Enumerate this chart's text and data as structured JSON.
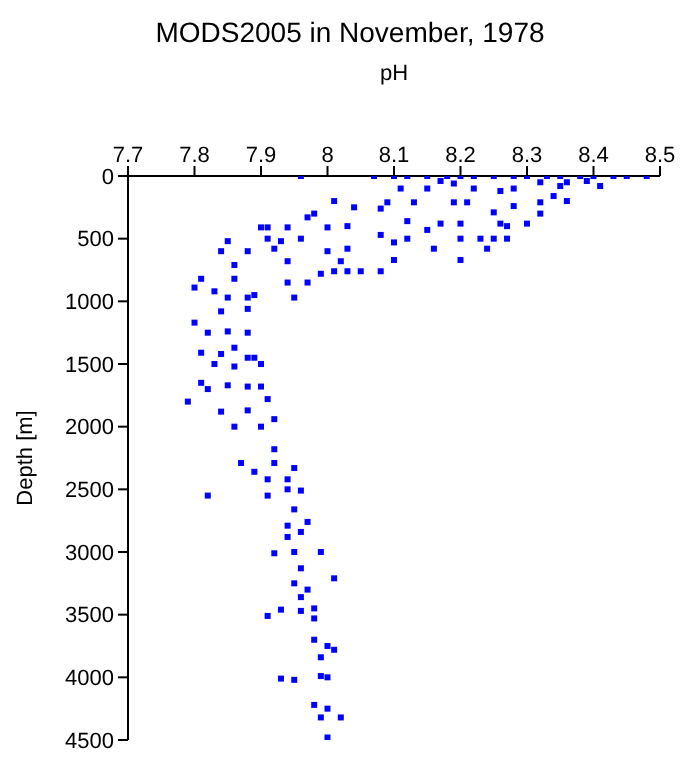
{
  "chart_data": {
    "type": "scatter",
    "title": "MODS2005 in November, 1978",
    "xlabel": "pH",
    "ylabel": "Depth [m]",
    "xlim": [
      7.7,
      8.5
    ],
    "xticks": [
      7.7,
      7.8,
      7.9,
      8,
      8.1,
      8.2,
      8.3,
      8.4,
      8.5
    ],
    "ylim": [
      4500,
      0
    ],
    "yticks": [
      0,
      500,
      1000,
      1500,
      2000,
      2500,
      3000,
      3500,
      4000,
      4500
    ],
    "grid": false,
    "marker": "square",
    "legend": false,
    "series": [
      {
        "color": "#0000ff",
        "x": [
          7.96,
          8.07,
          8.1,
          8.12,
          8.15,
          8.18,
          8.2,
          8.22,
          8.25,
          8.28,
          8.3,
          8.33,
          8.35,
          8.38,
          8.4,
          8.43,
          8.45,
          8.48,
          8.11,
          8.15,
          8.17,
          8.19,
          8.22,
          8.26,
          8.28,
          8.32,
          8.35,
          8.36,
          8.39,
          8.41,
          8.34,
          8.36,
          8.32,
          8.28,
          8.25,
          8.21,
          8.19,
          8.13,
          8.09,
          8.01,
          8.04,
          8.08,
          8.12,
          8.17,
          8.2,
          8.26,
          8.3,
          8.32,
          8.27,
          8.23,
          8.2,
          8.25,
          8.27,
          8.15,
          8.08,
          8.1,
          8.12,
          8.16,
          8.2,
          8.24,
          8.1,
          8.08,
          8.05,
          8.03,
          8.01,
          7.99,
          8.02,
          8.03,
          8.0,
          7.98,
          7.97,
          8.0,
          8.03,
          7.94,
          7.96,
          7.93,
          7.91,
          7.91,
          7.9,
          7.85,
          7.84,
          7.88,
          7.86,
          7.92,
          7.94,
          7.97,
          7.95,
          7.94,
          7.89,
          7.88,
          7.86,
          7.81,
          7.8,
          7.83,
          7.85,
          7.84,
          7.88,
          7.82,
          7.85,
          7.8,
          7.88,
          7.81,
          7.84,
          7.86,
          7.88,
          7.89,
          7.83,
          7.86,
          7.9,
          7.81,
          7.82,
          7.85,
          7.88,
          7.9,
          7.79,
          7.84,
          7.88,
          7.91,
          7.86,
          7.9,
          7.92,
          7.92,
          7.87,
          7.92,
          7.95,
          7.89,
          7.91,
          7.94,
          7.94,
          7.96,
          7.91,
          7.82,
          7.95,
          7.94,
          7.97,
          7.96,
          7.94,
          7.92,
          7.95,
          7.99,
          7.96,
          8.01,
          7.95,
          7.97,
          7.96,
          7.91,
          7.93,
          7.96,
          7.98,
          7.98,
          7.98,
          8.0,
          8.01,
          7.99,
          7.93,
          7.95,
          7.99,
          8.0,
          7.98,
          8.0,
          7.99,
          8.02,
          8.0
        ],
        "values": [
          0,
          0,
          0,
          0,
          0,
          0,
          0,
          0,
          0,
          0,
          0,
          0,
          0,
          0,
          0,
          0,
          0,
          0,
          100,
          100,
          40,
          60,
          100,
          120,
          100,
          50,
          80,
          50,
          40,
          80,
          160,
          200,
          210,
          240,
          290,
          210,
          210,
          210,
          210,
          200,
          250,
          260,
          360,
          380,
          380,
          380,
          380,
          300,
          400,
          500,
          500,
          500,
          500,
          430,
          470,
          530,
          500,
          580,
          670,
          580,
          670,
          760,
          760,
          760,
          760,
          780,
          680,
          580,
          600,
          300,
          330,
          410,
          400,
          410,
          500,
          520,
          410,
          500,
          410,
          520,
          600,
          600,
          710,
          580,
          680,
          850,
          970,
          850,
          950,
          970,
          820,
          820,
          890,
          920,
          970,
          1080,
          1060,
          1250,
          1240,
          1170,
          1250,
          1410,
          1420,
          1370,
          1450,
          1450,
          1500,
          1520,
          1500,
          1650,
          1700,
          1670,
          1680,
          1680,
          1800,
          1880,
          1870,
          1780,
          2000,
          2000,
          1940,
          2180,
          2290,
          2290,
          2330,
          2360,
          2420,
          2420,
          2500,
          2510,
          2550,
          2550,
          2660,
          2790,
          2760,
          2840,
          2880,
          3010,
          3000,
          3000,
          3130,
          3210,
          3250,
          3300,
          3360,
          3510,
          3460,
          3470,
          3450,
          3530,
          3700,
          3750,
          3780,
          3840,
          4010,
          4020,
          3990,
          4000,
          4220,
          4250,
          4320,
          4320,
          4480
        ]
      }
    ]
  }
}
